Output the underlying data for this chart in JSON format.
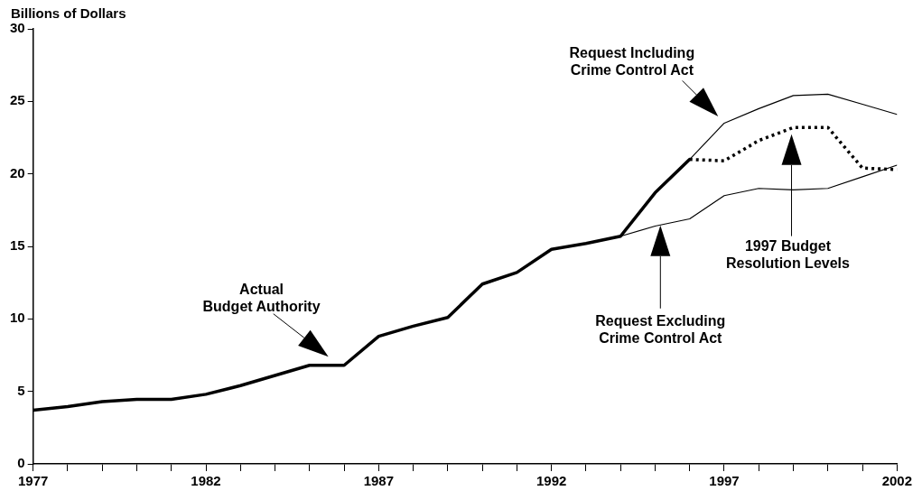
{
  "chart_data": {
    "type": "line",
    "ylabel": "Billions of Dollars",
    "xlim": [
      1977,
      2002
    ],
    "ylim": [
      0,
      30
    ],
    "xticks": [
      1977,
      {
        "value": 1978,
        "label": null
      },
      {
        "value": 1979,
        "label": null
      },
      {
        "value": 1980,
        "label": null
      },
      {
        "value": 1981,
        "label": null
      },
      1982,
      {
        "value": 1983,
        "label": null
      },
      {
        "value": 1984,
        "label": null
      },
      {
        "value": 1985,
        "label": null
      },
      {
        "value": 1986,
        "label": null
      },
      1987,
      {
        "value": 1988,
        "label": null
      },
      {
        "value": 1989,
        "label": null
      },
      {
        "value": 1990,
        "label": null
      },
      {
        "value": 1991,
        "label": null
      },
      1992,
      {
        "value": 1993,
        "label": null
      },
      {
        "value": 1994,
        "label": null
      },
      {
        "value": 1995,
        "label": null
      },
      {
        "value": 1996,
        "label": null
      },
      1997,
      {
        "value": 1998,
        "label": null
      },
      {
        "value": 1999,
        "label": null
      },
      {
        "value": 2000,
        "label": null
      },
      {
        "value": 2001,
        "label": null
      },
      2002
    ],
    "yticks": [
      0,
      5,
      10,
      15,
      20,
      25,
      30
    ],
    "grid": false,
    "legend": false,
    "marker": "none",
    "series": [
      {
        "color": "#000000",
        "line_style": "solid",
        "x": [
          1977,
          1978,
          1979,
          1980,
          1981,
          1982,
          1983,
          1984,
          1985,
          1986,
          1987,
          1988,
          1989,
          1990,
          1991,
          1992,
          1993,
          1994,
          1995,
          1996
        ],
        "values": [
          3.7,
          3.95,
          4.3,
          4.45,
          4.45,
          4.8,
          5.4,
          6.1,
          6.8,
          6.8,
          8.8,
          9.5,
          10.1,
          12.4,
          13.2,
          14.8,
          15.2,
          15.7,
          18.7,
          21.0
        ]
      },
      {
        "color": "#000000",
        "line_style": "solid",
        "x": [
          1996,
          1997,
          1998,
          1999,
          2000,
          2001,
          2002
        ],
        "values": [
          21.0,
          23.5,
          24.5,
          25.4,
          25.5,
          24.8,
          24.1
        ]
      },
      {
        "color": "#000000",
        "line_style": "solid",
        "x": [
          1994,
          1995,
          1996,
          1997,
          1998,
          1999,
          2000,
          2001,
          2002
        ],
        "values": [
          15.7,
          16.4,
          16.9,
          18.5,
          19.0,
          18.9,
          19.0,
          19.8,
          20.6
        ]
      },
      {
        "color": "#000000",
        "line_style": "dotted",
        "x": [
          1996,
          1997,
          1998,
          1999,
          2000,
          2001,
          2002
        ],
        "values": [
          21.0,
          20.9,
          22.3,
          23.2,
          23.2,
          20.4,
          20.3
        ]
      }
    ],
    "annotations": [
      "Actual\nBudget Authority",
      "Request Including\nCrime Control Act",
      "1997 Budget\nResolution Levels",
      "Request Excluding\nCrime Control Act"
    ]
  }
}
